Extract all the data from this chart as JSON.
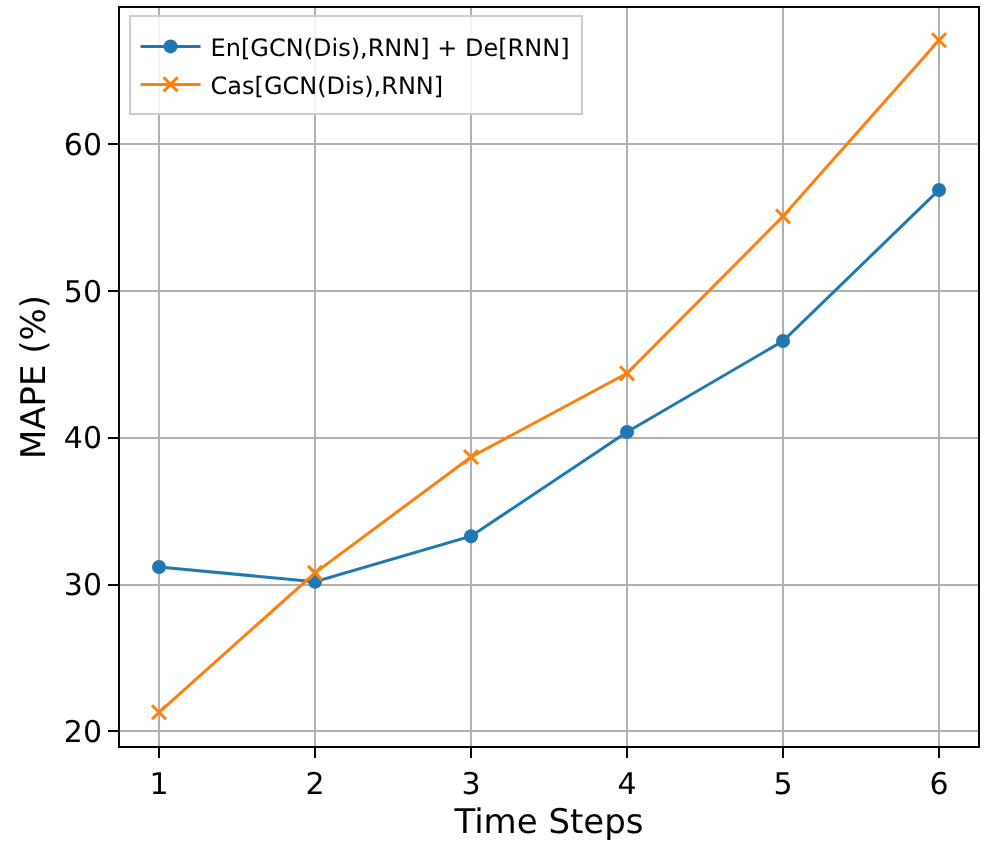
{
  "chart_data": {
    "type": "line",
    "xlabel": "Time Steps",
    "ylabel": "MAPE (%)",
    "x": [
      1,
      2,
      3,
      4,
      5,
      6
    ],
    "series": [
      {
        "name": "En[GCN(Dis),RNN] + De[RNN]",
        "color": "#1f77b4",
        "marker": "circle",
        "values": [
          31.2,
          30.2,
          33.3,
          40.4,
          46.6,
          56.9
        ]
      },
      {
        "name": "Cas[GCN(Dis),RNN]",
        "color": "#ff7f0e",
        "marker": "cross",
        "values": [
          21.3,
          30.8,
          38.7,
          44.4,
          55.1,
          67.1
        ]
      }
    ],
    "xlim": [
      0.75,
      6.25
    ],
    "xticks": [
      1,
      2,
      3,
      4,
      5,
      6
    ],
    "ylim": [
      19.0,
      69.3
    ],
    "yticks": [
      20,
      30,
      40,
      50,
      60
    ],
    "grid": true,
    "legend": "top left",
    "line_style": "solid"
  }
}
